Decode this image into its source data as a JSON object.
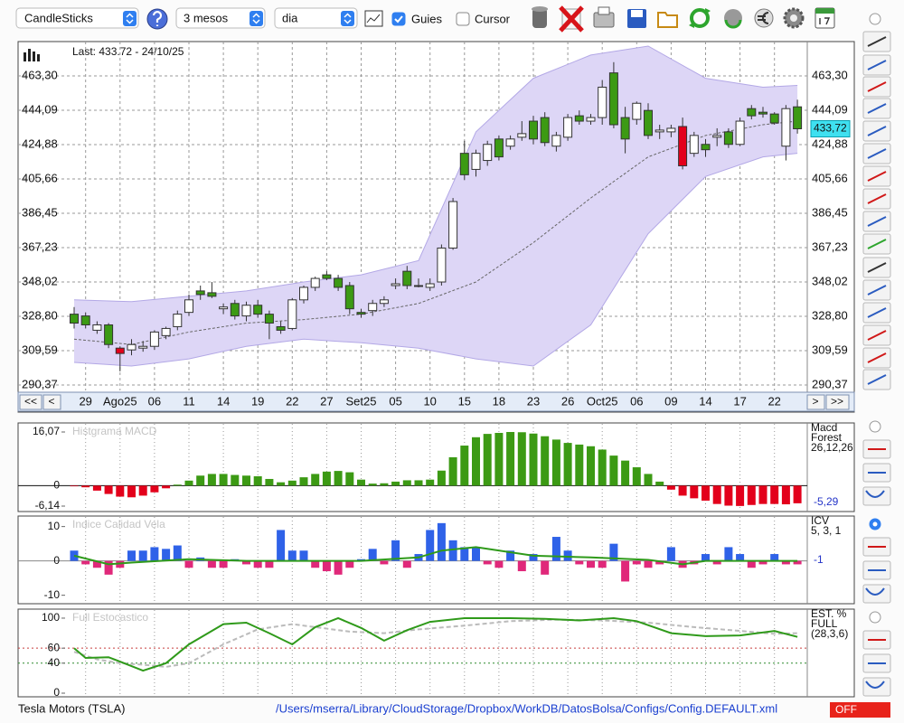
{
  "toolbar": {
    "chart_style": "CandleSticks",
    "range": "3 mesos",
    "interval": "dia",
    "guides": {
      "label": "Guies",
      "checked": true
    },
    "cursor": {
      "label": "Cursor",
      "checked": false
    }
  },
  "chart_data": [
    {
      "type": "candlestick",
      "last_label": "Last: 433.72 - 24/10/25",
      "last_value": {
        "value": 433.72,
        "label": "433,72"
      },
      "categories": [
        null,
        "29",
        null,
        null,
        "Ago25",
        null,
        null,
        "06",
        null,
        null,
        "11",
        null,
        null,
        "14",
        null,
        null,
        "19",
        null,
        null,
        "22",
        null,
        null,
        "27",
        null,
        null,
        "Set25",
        null,
        null,
        "05",
        null,
        null,
        "10",
        null,
        null,
        "15",
        null,
        null,
        "18",
        null,
        null,
        "23",
        null,
        null,
        "26",
        null,
        null,
        "Oct25",
        null,
        null,
        "06",
        null,
        null,
        "09",
        null,
        null,
        "14",
        null,
        null,
        "17",
        null,
        null,
        "22",
        null,
        null
      ],
      "nav": [
        "<<",
        "<",
        ">",
        ">>"
      ],
      "open": [
        330,
        329,
        321,
        324,
        311,
        310,
        311,
        312,
        318,
        323,
        331,
        343,
        342,
        333,
        336,
        329,
        335,
        330,
        323,
        322,
        338,
        345,
        352,
        350,
        346,
        331,
        332,
        336,
        346,
        354,
        346,
        345,
        348,
        367,
        420,
        411,
        416,
        428,
        424,
        429,
        438,
        440,
        424,
        429,
        441,
        438,
        440,
        465,
        440,
        439,
        444,
        432,
        432,
        435,
        420,
        425,
        429,
        432,
        425,
        445,
        443,
        442,
        424,
        446
      ],
      "high": [
        334,
        331,
        326,
        325,
        312,
        316,
        315,
        321,
        323,
        332,
        341,
        346,
        348,
        336,
        338,
        337,
        338,
        332,
        326,
        339,
        346,
        351,
        354,
        352,
        348,
        333,
        338,
        340,
        350,
        357,
        350,
        350,
        369,
        395,
        427,
        422,
        427,
        430,
        430,
        438,
        441,
        443,
        432,
        442,
        444,
        442,
        461,
        471,
        446,
        449,
        448,
        436,
        436,
        440,
        432,
        428,
        434,
        434,
        440,
        447,
        446,
        443,
        447,
        450
      ],
      "low": [
        322,
        322,
        319,
        311,
        298,
        307,
        309,
        310,
        316,
        321,
        329,
        338,
        339,
        330,
        327,
        326,
        328,
        316,
        319,
        321,
        336,
        343,
        349,
        343,
        330,
        328,
        329,
        334,
        344,
        344,
        345,
        343,
        346,
        366,
        405,
        407,
        413,
        416,
        422,
        427,
        425,
        424,
        421,
        427,
        436,
        436,
        436,
        434,
        420,
        436,
        428,
        428,
        429,
        411,
        418,
        418,
        424,
        423,
        424,
        439,
        440,
        436,
        416,
        431
      ],
      "close": [
        325,
        324,
        324,
        313,
        308,
        313,
        312,
        320,
        322,
        330,
        338,
        341,
        340,
        334,
        329,
        335,
        330,
        325,
        321,
        338,
        345,
        350,
        350,
        345,
        333,
        330,
        336,
        338,
        347,
        346,
        346,
        347,
        367,
        393,
        408,
        420,
        425,
        418,
        428,
        431,
        428,
        426,
        430,
        440,
        438,
        440,
        457,
        436,
        428,
        448,
        430,
        433,
        434,
        413,
        430,
        422,
        430,
        425,
        438,
        441,
        442,
        437,
        445,
        433.72
      ],
      "up_color": "#ffffff",
      "down_color": "#3c9a14",
      "highlight_color": "#e3001b",
      "highlight": [
        4,
        53
      ],
      "band": {
        "x": [
          0,
          5,
          10,
          15,
          20,
          25,
          30,
          35,
          40,
          45,
          50,
          55,
          60,
          63
        ],
        "upper": [
          338,
          337,
          340,
          343,
          348,
          352,
          360,
          432,
          462,
          475,
          480,
          462,
          457,
          458
        ],
        "lower": [
          303,
          301,
          305,
          312,
          316,
          314,
          311,
          305,
          301,
          324,
          375,
          407,
          418,
          420
        ],
        "mid": [
          316,
          313,
          320,
          325,
          327,
          330,
          336,
          348,
          370,
          395,
          418,
          430,
          436,
          438
        ],
        "fill": "#ddd6f6",
        "color": "#b3a8e6",
        "mid_color": "#666666"
      },
      "ylim": [
        287.33,
        482.52
      ],
      "yticks": [
        {
          "value": 290.37,
          "label": "290,37"
        },
        {
          "value": 309.59,
          "label": "309,59"
        },
        {
          "value": 328.8,
          "label": "328,80"
        },
        {
          "value": 348.02,
          "label": "348,02"
        },
        {
          "value": 367.23,
          "label": "367,23"
        },
        {
          "value": 386.45,
          "label": "386,45"
        },
        {
          "value": 405.66,
          "label": "405,66"
        },
        {
          "value": 424.88,
          "label": "424,88"
        },
        {
          "value": 444.09,
          "label": "444,09"
        },
        {
          "value": 463.3,
          "label": "463,30"
        }
      ],
      "grid": true
    },
    {
      "type": "bar",
      "title": "Histgrama MACD",
      "indicator": [
        "Macd",
        "Forest",
        "26,12,26"
      ],
      "last_value": {
        "value": -5.29,
        "label": "-5,29"
      },
      "values": [
        -0.2,
        -0.5,
        -1.5,
        -2.5,
        -3.3,
        -3.5,
        -3.0,
        -2.0,
        -0.8,
        0.3,
        1.5,
        3.0,
        3.5,
        3.5,
        3.2,
        3.0,
        2.8,
        2.0,
        1.0,
        1.5,
        2.5,
        3.5,
        4.2,
        4.4,
        4.0,
        1.8,
        0.6,
        0.7,
        1.2,
        1.6,
        1.6,
        1.8,
        4.5,
        8.5,
        12.0,
        14.5,
        15.5,
        15.8,
        16.07,
        16.0,
        15.6,
        14.8,
        13.8,
        12.8,
        12.3,
        11.8,
        10.8,
        9.0,
        7.5,
        5.5,
        3.5,
        1.2,
        -1.2,
        -3.0,
        -3.8,
        -4.5,
        -5.5,
        -6.0,
        -6.1,
        -5.8,
        -5.5,
        -5.5,
        -5.6,
        -5.29
      ],
      "positive_color": "#3c9a14",
      "negative_color": "#e3001b",
      "ylim": [
        -7.49,
        18.51
      ],
      "yticks": [
        {
          "value": 16.07,
          "label": "16,07"
        },
        0,
        {
          "value": -6.14,
          "label": "-6,14"
        }
      ]
    },
    {
      "type": "bar",
      "title": "Indice Calidad Vela",
      "indicator": [
        "ICV",
        "5, 3, 1"
      ],
      "last_value": -1,
      "values": [
        3,
        -1,
        -2,
        -4,
        -2,
        3,
        3,
        4,
        3.5,
        4.5,
        -2,
        1,
        -2,
        -2,
        0.5,
        -1,
        -2,
        -2,
        9,
        3,
        3,
        -2,
        -3,
        -4,
        -2,
        0.5,
        3.5,
        -1,
        6,
        -2,
        2,
        9,
        11,
        6,
        4,
        4,
        -1,
        -2,
        3,
        -3,
        2,
        -4,
        7,
        3,
        -1,
        -2,
        -2,
        5,
        -6,
        -1,
        -2,
        -1,
        4,
        -2,
        -1,
        2,
        -1,
        4,
        2,
        -2,
        -1,
        2,
        -1,
        -1
      ],
      "positive_color": "#2f62e8",
      "negative_color": "#e0287a",
      "signal": {
        "x": [
          0,
          3,
          5,
          10,
          15,
          20,
          25,
          30,
          32,
          35,
          40,
          45,
          50,
          53,
          55,
          60,
          63
        ],
        "values": [
          1.5,
          -1,
          -0.5,
          0.5,
          0,
          0,
          0,
          1,
          3,
          4,
          1.5,
          1,
          0.3,
          -1,
          0,
          0,
          0
        ],
        "color": "#2f9a1a"
      },
      "ylim": [
        -12.2,
        12.8
      ],
      "yticks": [
        10,
        0,
        -10
      ]
    },
    {
      "type": "line",
      "title": "Full Estocastico",
      "indicator": [
        "EST. %",
        "FULL",
        "(28,3,6)"
      ],
      "series": [
        {
          "x": [
            0,
            1,
            3,
            4,
            6,
            8,
            10,
            13,
            15,
            17,
            19,
            21,
            23,
            25,
            27,
            29,
            31,
            34,
            38,
            41,
            44,
            47,
            49,
            52,
            55,
            58,
            61,
            63
          ],
          "values": [
            60,
            47,
            48,
            42,
            30,
            40,
            65,
            92,
            94,
            80,
            65,
            88,
            100,
            87,
            70,
            84,
            95,
            100,
            100,
            99,
            97,
            100,
            96,
            80,
            76,
            77,
            83,
            75
          ],
          "color": "#2f9a1a"
        },
        {
          "x": [
            0,
            2,
            4,
            6,
            8,
            10,
            13,
            16,
            19,
            21,
            24,
            27,
            30,
            34,
            38,
            42,
            46,
            50,
            54,
            58,
            61,
            63
          ],
          "values": [
            55,
            45,
            40,
            38,
            35,
            40,
            65,
            85,
            92,
            88,
            82,
            80,
            85,
            90,
            96,
            98,
            97,
            94,
            88,
            83,
            79,
            80
          ],
          "color": "#bbbbbb",
          "dashed": true
        }
      ],
      "levels": [
        {
          "value": 60,
          "color": "#c83c3c"
        },
        {
          "value": 40,
          "color": "#2f8a2f"
        }
      ],
      "ylim": [
        -3.6,
        110.8
      ],
      "yticks": [
        0,
        40,
        60,
        100
      ]
    }
  ],
  "status": {
    "instrument": "Tesla Motors (TSLA)",
    "config_path": "/Users/mserra/Library/CloudStorage/Dropbox/WorkDB/DatosBolsa/Configs/Config.DEFAULT.xml",
    "state": "OFF"
  }
}
